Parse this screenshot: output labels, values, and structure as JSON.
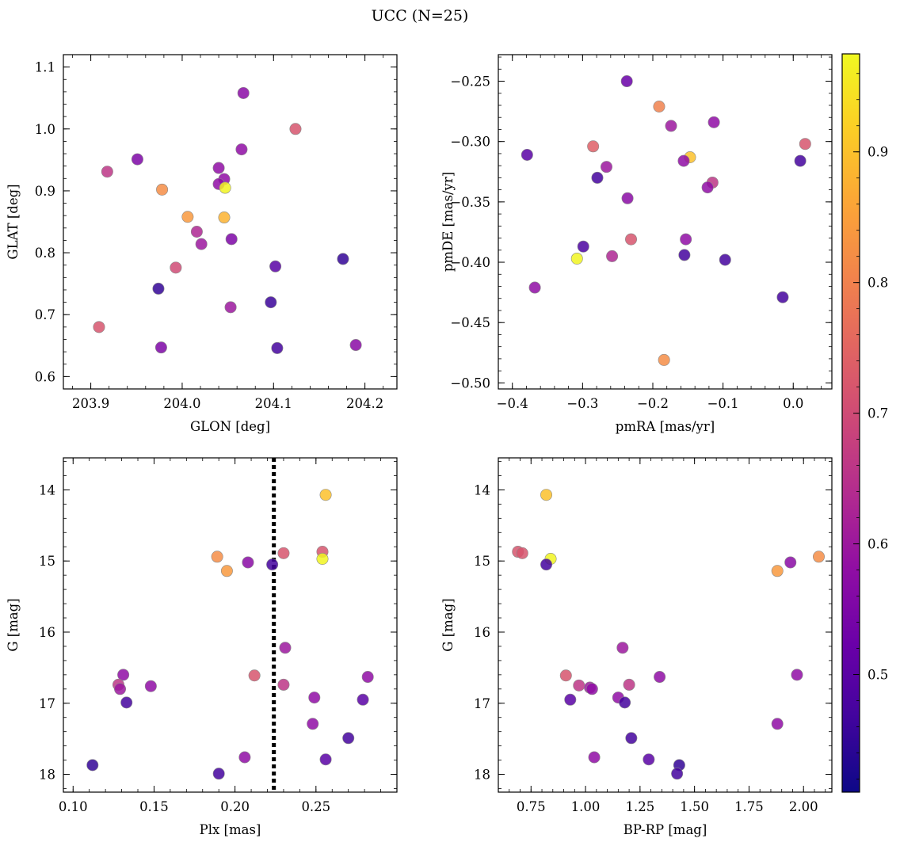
{
  "figure": {
    "title": "UCC (N=25)"
  },
  "colorbar": {
    "colormap": "plasma",
    "vmin": 0.41,
    "vmax": 0.975,
    "ticks": [
      0.5,
      0.6,
      0.7,
      0.8,
      0.9
    ],
    "tick_labels": [
      "0.5",
      "0.6",
      "0.7",
      "0.8",
      "0.9"
    ]
  },
  "chart_data": [
    {
      "type": "scatter",
      "xlabel": "GLON [deg]",
      "ylabel": "GLAT [deg]",
      "xlim": [
        203.87,
        204.235
      ],
      "ylim": [
        0.58,
        1.12
      ],
      "xticks": [
        203.9,
        204.0,
        204.1,
        204.2
      ],
      "xtick_labels": [
        "203.9",
        "204.0",
        "204.1",
        "204.2"
      ],
      "yticks": [
        0.6,
        0.7,
        0.8,
        0.9,
        1.0,
        1.1
      ],
      "ytick_labels": [
        "0.6",
        "0.7",
        "0.8",
        "0.9",
        "1.0",
        "1.1"
      ],
      "points": [
        {
          "x": 204.067,
          "y": 1.058,
          "c": 0.57
        },
        {
          "x": 204.124,
          "y": 1.0,
          "c": 0.72
        },
        {
          "x": 203.951,
          "y": 0.951,
          "c": 0.55
        },
        {
          "x": 203.918,
          "y": 0.931,
          "c": 0.66
        },
        {
          "x": 204.065,
          "y": 0.967,
          "c": 0.58
        },
        {
          "x": 204.04,
          "y": 0.937,
          "c": 0.58
        },
        {
          "x": 204.046,
          "y": 0.919,
          "c": 0.58
        },
        {
          "x": 204.04,
          "y": 0.911,
          "c": 0.58
        },
        {
          "x": 204.047,
          "y": 0.905,
          "c": 0.97
        },
        {
          "x": 203.978,
          "y": 0.902,
          "c": 0.82
        },
        {
          "x": 204.006,
          "y": 0.858,
          "c": 0.84
        },
        {
          "x": 204.046,
          "y": 0.857,
          "c": 0.88
        },
        {
          "x": 204.016,
          "y": 0.834,
          "c": 0.63
        },
        {
          "x": 204.021,
          "y": 0.814,
          "c": 0.6
        },
        {
          "x": 204.054,
          "y": 0.822,
          "c": 0.55
        },
        {
          "x": 203.993,
          "y": 0.776,
          "c": 0.7
        },
        {
          "x": 203.974,
          "y": 0.742,
          "c": 0.45
        },
        {
          "x": 204.102,
          "y": 0.778,
          "c": 0.5
        },
        {
          "x": 204.176,
          "y": 0.79,
          "c": 0.45
        },
        {
          "x": 204.097,
          "y": 0.72,
          "c": 0.46
        },
        {
          "x": 204.053,
          "y": 0.712,
          "c": 0.6
        },
        {
          "x": 203.909,
          "y": 0.68,
          "c": 0.72
        },
        {
          "x": 203.977,
          "y": 0.647,
          "c": 0.55
        },
        {
          "x": 204.104,
          "y": 0.646,
          "c": 0.47
        },
        {
          "x": 204.19,
          "y": 0.651,
          "c": 0.57
        }
      ]
    },
    {
      "type": "scatter",
      "xlabel": "pmRA [mas/yr]",
      "ylabel": "pmDE [mas/yr]",
      "xlim": [
        -0.42,
        0.055
      ],
      "ylim": [
        -0.505,
        -0.228
      ],
      "xticks": [
        -0.4,
        -0.3,
        -0.2,
        -0.1,
        0.0
      ],
      "xtick_labels": [
        "−0.4",
        "−0.3",
        "−0.2",
        "−0.1",
        "0.0"
      ],
      "yticks": [
        -0.5,
        -0.45,
        -0.4,
        -0.35,
        -0.3,
        -0.25
      ],
      "ytick_labels": [
        "−0.50",
        "−0.45",
        "−0.40",
        "−0.35",
        "−0.30",
        "−0.25"
      ],
      "points": [
        {
          "x": -0.237,
          "y": -0.25,
          "c": 0.52
        },
        {
          "x": -0.191,
          "y": -0.271,
          "c": 0.8
        },
        {
          "x": -0.174,
          "y": -0.287,
          "c": 0.6
        },
        {
          "x": -0.113,
          "y": -0.284,
          "c": 0.58
        },
        {
          "x": -0.379,
          "y": -0.311,
          "c": 0.5
        },
        {
          "x": -0.285,
          "y": -0.304,
          "c": 0.74
        },
        {
          "x": 0.017,
          "y": -0.302,
          "c": 0.72
        },
        {
          "x": -0.147,
          "y": -0.313,
          "c": 0.9
        },
        {
          "x": -0.156,
          "y": -0.316,
          "c": 0.58
        },
        {
          "x": 0.01,
          "y": -0.316,
          "c": 0.47
        },
        {
          "x": -0.266,
          "y": -0.321,
          "c": 0.6
        },
        {
          "x": -0.279,
          "y": -0.33,
          "c": 0.47
        },
        {
          "x": -0.115,
          "y": -0.334,
          "c": 0.66
        },
        {
          "x": -0.122,
          "y": -0.338,
          "c": 0.58
        },
        {
          "x": -0.236,
          "y": -0.347,
          "c": 0.57
        },
        {
          "x": -0.231,
          "y": -0.381,
          "c": 0.72
        },
        {
          "x": -0.153,
          "y": -0.381,
          "c": 0.58
        },
        {
          "x": -0.299,
          "y": -0.387,
          "c": 0.48
        },
        {
          "x": -0.308,
          "y": -0.397,
          "c": 0.97
        },
        {
          "x": -0.258,
          "y": -0.395,
          "c": 0.63
        },
        {
          "x": -0.155,
          "y": -0.394,
          "c": 0.47
        },
        {
          "x": -0.097,
          "y": -0.398,
          "c": 0.47
        },
        {
          "x": -0.368,
          "y": -0.421,
          "c": 0.58
        },
        {
          "x": -0.015,
          "y": -0.429,
          "c": 0.47
        },
        {
          "x": -0.184,
          "y": -0.481,
          "c": 0.82
        }
      ]
    },
    {
      "type": "scatter",
      "xlabel": "Plx [mas]",
      "ylabel": "G [mag]",
      "xlim": [
        0.094,
        0.3
      ],
      "ylim": [
        18.25,
        13.55
      ],
      "y_inverted": true,
      "xticks": [
        0.1,
        0.15,
        0.2,
        0.25
      ],
      "xtick_labels": [
        "0.10",
        "0.15",
        "0.20",
        "0.25"
      ],
      "yticks": [
        14,
        15,
        16,
        17,
        18
      ],
      "ytick_labels": [
        "14",
        "15",
        "16",
        "17",
        "18"
      ],
      "vline": {
        "x": 0.224,
        "style": "dotted"
      },
      "points": [
        {
          "x": 0.256,
          "y": 14.07,
          "c": 0.9
        },
        {
          "x": 0.189,
          "y": 14.94,
          "c": 0.82
        },
        {
          "x": 0.254,
          "y": 14.87,
          "c": 0.72
        },
        {
          "x": 0.23,
          "y": 14.89,
          "c": 0.72
        },
        {
          "x": 0.254,
          "y": 14.97,
          "c": 0.97
        },
        {
          "x": 0.208,
          "y": 15.02,
          "c": 0.57
        },
        {
          "x": 0.223,
          "y": 15.05,
          "c": 0.47
        },
        {
          "x": 0.195,
          "y": 15.14,
          "c": 0.84
        },
        {
          "x": 0.231,
          "y": 16.22,
          "c": 0.6
        },
        {
          "x": 0.131,
          "y": 16.6,
          "c": 0.58
        },
        {
          "x": 0.212,
          "y": 16.61,
          "c": 0.72
        },
        {
          "x": 0.282,
          "y": 16.63,
          "c": 0.58
        },
        {
          "x": 0.128,
          "y": 16.74,
          "c": 0.66
        },
        {
          "x": 0.23,
          "y": 16.74,
          "c": 0.66
        },
        {
          "x": 0.148,
          "y": 16.76,
          "c": 0.58
        },
        {
          "x": 0.129,
          "y": 16.8,
          "c": 0.6
        },
        {
          "x": 0.249,
          "y": 16.92,
          "c": 0.58
        },
        {
          "x": 0.279,
          "y": 16.95,
          "c": 0.5
        },
        {
          "x": 0.133,
          "y": 16.99,
          "c": 0.47
        },
        {
          "x": 0.248,
          "y": 17.29,
          "c": 0.58
        },
        {
          "x": 0.27,
          "y": 17.49,
          "c": 0.47
        },
        {
          "x": 0.206,
          "y": 17.76,
          "c": 0.58
        },
        {
          "x": 0.256,
          "y": 17.79,
          "c": 0.5
        },
        {
          "x": 0.112,
          "y": 17.87,
          "c": 0.45
        },
        {
          "x": 0.19,
          "y": 17.99,
          "c": 0.47
        }
      ]
    },
    {
      "type": "scatter",
      "xlabel": "BP-RP [mag]",
      "ylabel": "G [mag]",
      "xlim": [
        0.6,
        2.13
      ],
      "ylim": [
        18.25,
        13.55
      ],
      "y_inverted": true,
      "xticks": [
        0.75,
        1.0,
        1.25,
        1.5,
        1.75,
        2.0
      ],
      "xtick_labels": [
        "0.75",
        "1.00",
        "1.25",
        "1.50",
        "1.75",
        "2.00"
      ],
      "yticks": [
        14,
        15,
        16,
        17,
        18
      ],
      "ytick_labels": [
        "14",
        "15",
        "16",
        "17",
        "18"
      ],
      "points": [
        {
          "x": 0.82,
          "y": 14.07,
          "c": 0.9
        },
        {
          "x": 0.69,
          "y": 14.87,
          "c": 0.72
        },
        {
          "x": 0.71,
          "y": 14.89,
          "c": 0.72
        },
        {
          "x": 0.84,
          "y": 14.97,
          "c": 0.97
        },
        {
          "x": 0.82,
          "y": 15.05,
          "c": 0.47
        },
        {
          "x": 1.94,
          "y": 15.02,
          "c": 0.57
        },
        {
          "x": 2.07,
          "y": 14.94,
          "c": 0.82
        },
        {
          "x": 1.88,
          "y": 15.14,
          "c": 0.84
        },
        {
          "x": 1.17,
          "y": 16.22,
          "c": 0.6
        },
        {
          "x": 0.91,
          "y": 16.61,
          "c": 0.72
        },
        {
          "x": 1.97,
          "y": 16.6,
          "c": 0.58
        },
        {
          "x": 1.34,
          "y": 16.63,
          "c": 0.58
        },
        {
          "x": 0.97,
          "y": 16.75,
          "c": 0.66
        },
        {
          "x": 1.2,
          "y": 16.74,
          "c": 0.66
        },
        {
          "x": 1.02,
          "y": 16.78,
          "c": 0.6
        },
        {
          "x": 1.03,
          "y": 16.8,
          "c": 0.58
        },
        {
          "x": 1.15,
          "y": 16.92,
          "c": 0.58
        },
        {
          "x": 0.93,
          "y": 16.95,
          "c": 0.5
        },
        {
          "x": 1.18,
          "y": 16.99,
          "c": 0.47
        },
        {
          "x": 1.88,
          "y": 17.29,
          "c": 0.58
        },
        {
          "x": 1.21,
          "y": 17.49,
          "c": 0.47
        },
        {
          "x": 1.04,
          "y": 17.76,
          "c": 0.58
        },
        {
          "x": 1.29,
          "y": 17.79,
          "c": 0.5
        },
        {
          "x": 1.43,
          "y": 17.87,
          "c": 0.45
        },
        {
          "x": 1.42,
          "y": 17.99,
          "c": 0.47
        }
      ]
    }
  ]
}
